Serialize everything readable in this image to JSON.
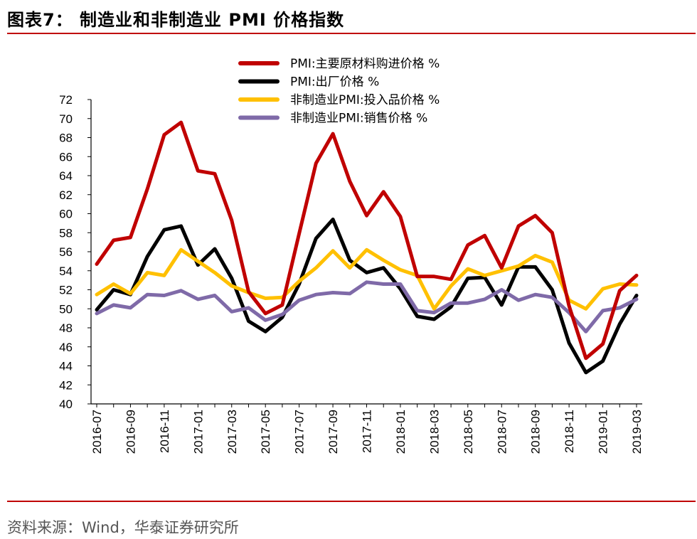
{
  "header": {
    "title": "图表7： 制造业和非制造业 PMI 价格指数"
  },
  "footer": {
    "source": "资料来源：Wind，华泰证券研究所"
  },
  "chart_data": {
    "type": "line",
    "title": "图表7： 制造业和非制造业 PMI 价格指数",
    "xlabel": "",
    "ylabel": "",
    "ylim": [
      40,
      72
    ],
    "yticks": [
      40,
      42,
      44,
      46,
      48,
      50,
      52,
      54,
      56,
      58,
      60,
      62,
      64,
      66,
      68,
      70,
      72
    ],
    "grid": false,
    "legend_position": "top-center",
    "x": [
      "2016-07",
      "2016-08",
      "2016-09",
      "2016-10",
      "2016-11",
      "2016-12",
      "2017-01",
      "2017-02",
      "2017-03",
      "2017-04",
      "2017-05",
      "2017-06",
      "2017-07",
      "2017-08",
      "2017-09",
      "2017-10",
      "2017-11",
      "2017-12",
      "2018-01",
      "2018-02",
      "2018-03",
      "2018-04",
      "2018-05",
      "2018-06",
      "2018-07",
      "2018-08",
      "2018-09",
      "2018-10",
      "2018-11",
      "2018-12",
      "2019-01",
      "2019-02",
      "2019-03"
    ],
    "x_tick_labels": [
      "2016-07",
      "2016-09",
      "2016-11",
      "2017-01",
      "2017-03",
      "2017-05",
      "2017-07",
      "2017-09",
      "2017-11",
      "2018-01",
      "2018-03",
      "2018-05",
      "2018-07",
      "2018-09",
      "2018-11",
      "2019-01",
      "2019-03"
    ],
    "series": [
      {
        "name": "PMI:主要原材料购进价格 %",
        "color": "#c00000",
        "values": [
          54.7,
          57.2,
          57.5,
          62.6,
          68.3,
          69.6,
          64.5,
          64.2,
          59.3,
          51.8,
          49.5,
          50.4,
          57.9,
          65.3,
          68.4,
          63.4,
          59.8,
          62.3,
          59.7,
          53.4,
          53.4,
          53.1,
          56.7,
          57.7,
          54.3,
          58.7,
          59.8,
          58.0,
          50.3,
          44.8,
          46.3,
          51.9,
          53.5
        ]
      },
      {
        "name": "PMI:出厂价格 %",
        "color": "#000000",
        "values": [
          49.9,
          52.0,
          51.5,
          55.5,
          58.3,
          58.7,
          54.6,
          56.3,
          53.2,
          48.7,
          47.6,
          49.1,
          52.6,
          57.4,
          59.4,
          55.1,
          53.8,
          54.3,
          52.1,
          49.2,
          48.9,
          50.2,
          53.2,
          53.3,
          50.4,
          54.4,
          54.4,
          52.0,
          46.4,
          43.3,
          44.5,
          48.4,
          51.4
        ]
      },
      {
        "name": "非制造业PMI:投入品价格 %",
        "color": "#ffc000",
        "values": [
          51.5,
          52.6,
          51.6,
          53.8,
          53.5,
          56.2,
          55.0,
          53.8,
          52.4,
          51.7,
          51.1,
          51.2,
          52.9,
          54.3,
          56.1,
          54.3,
          56.2,
          55.1,
          54.1,
          53.5,
          50.0,
          52.4,
          54.2,
          53.5,
          54.0,
          54.5,
          55.6,
          54.9,
          50.9,
          50.0,
          52.1,
          52.6,
          52.5
        ]
      },
      {
        "name": "非制造业PMI:销售价格 %",
        "color": "#7f6aa8",
        "values": [
          49.5,
          50.4,
          50.1,
          51.5,
          51.4,
          51.9,
          51.0,
          51.4,
          49.7,
          50.1,
          48.8,
          49.4,
          50.9,
          51.5,
          51.7,
          51.6,
          52.8,
          52.6,
          52.6,
          49.8,
          49.6,
          50.6,
          50.6,
          51.0,
          52.0,
          50.9,
          51.5,
          51.2,
          49.6,
          47.6,
          49.8,
          50.1,
          51.0
        ]
      }
    ]
  }
}
